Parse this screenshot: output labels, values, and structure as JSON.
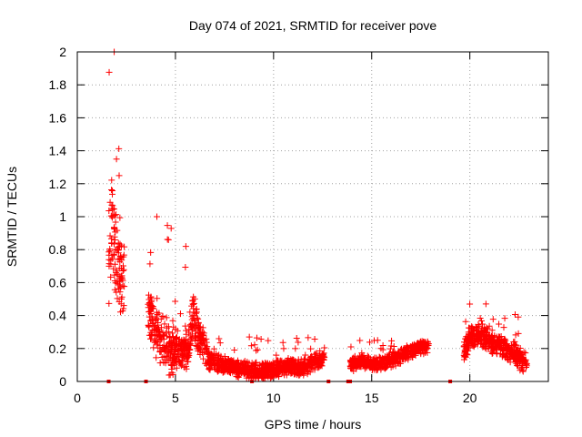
{
  "chart_data": {
    "type": "scatter",
    "title": "Day 074 of 2021, SRMTID for receiver pove",
    "xlabel": "GPS time / hours",
    "ylabel": "SRMTID / TECUs",
    "xlim": [
      0,
      24
    ],
    "ylim": [
      0,
      2
    ],
    "xticks": [
      0,
      5,
      10,
      15,
      20
    ],
    "yticks": [
      0,
      0.2,
      0.4,
      0.6,
      0.8,
      1,
      1.2,
      1.4,
      1.6,
      1.8,
      2
    ],
    "grid": true,
    "marker": "+",
    "series_color": "#ff0000",
    "axis_markers_x": [
      1.6,
      3.5,
      8.9,
      12.8,
      13.8,
      13.9,
      19.0
    ],
    "segments": [
      {
        "x_start": 1.6,
        "x_end": 2.4,
        "y_center": [
          [
            1.6,
            0.75
          ],
          [
            1.8,
            1.05
          ],
          [
            1.9,
            0.8
          ],
          [
            2.1,
            0.75
          ],
          [
            2.3,
            0.65
          ],
          [
            2.4,
            0.55
          ]
        ],
        "y_peak": 2.0,
        "spread": 0.35
      },
      {
        "x_start": 3.6,
        "x_end": 4.9,
        "y_center": [
          [
            3.6,
            0.45
          ],
          [
            3.8,
            0.35
          ],
          [
            4.1,
            0.3
          ],
          [
            4.4,
            0.25
          ],
          [
            4.7,
            0.2
          ],
          [
            4.9,
            0.18
          ]
        ],
        "y_peak": 1.0,
        "spread": 0.18
      },
      {
        "x_start": 4.9,
        "x_end": 6.7,
        "y_center": [
          [
            4.9,
            0.2
          ],
          [
            5.3,
            0.18
          ],
          [
            5.7,
            0.22
          ],
          [
            5.9,
            0.45
          ],
          [
            6.1,
            0.3
          ],
          [
            6.7,
            0.15
          ]
        ],
        "y_peak": 0.82,
        "spread": 0.14
      },
      {
        "x_start": 6.7,
        "x_end": 12.6,
        "y_center": [
          [
            6.7,
            0.12
          ],
          [
            7.5,
            0.1
          ],
          [
            8.5,
            0.07
          ],
          [
            9.5,
            0.06
          ],
          [
            10.5,
            0.09
          ],
          [
            11.5,
            0.08
          ],
          [
            12.6,
            0.15
          ]
        ],
        "y_peak": 0.27,
        "spread": 0.06
      },
      {
        "x_start": 13.9,
        "x_end": 17.9,
        "y_center": [
          [
            13.9,
            0.1
          ],
          [
            14.5,
            0.12
          ],
          [
            15.3,
            0.1
          ],
          [
            16.0,
            0.13
          ],
          [
            16.7,
            0.17
          ],
          [
            17.3,
            0.2
          ],
          [
            17.9,
            0.22
          ]
        ],
        "y_peak": 0.25,
        "spread": 0.05
      },
      {
        "x_start": 19.7,
        "x_end": 22.9,
        "y_center": [
          [
            19.7,
            0.18
          ],
          [
            20.0,
            0.26
          ],
          [
            20.5,
            0.27
          ],
          [
            21.0,
            0.25
          ],
          [
            21.5,
            0.22
          ],
          [
            22.0,
            0.18
          ],
          [
            22.5,
            0.15
          ],
          [
            22.9,
            0.12
          ]
        ],
        "y_peak": 0.47,
        "spread": 0.08
      }
    ]
  }
}
